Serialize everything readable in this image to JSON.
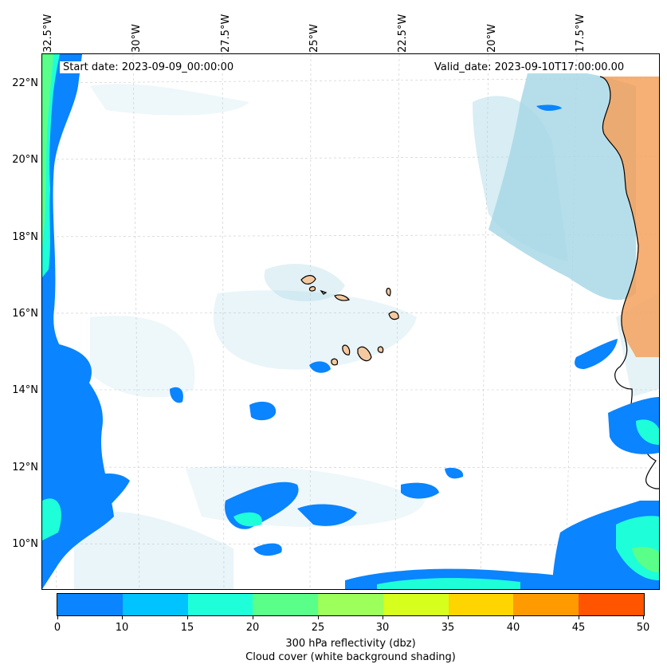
{
  "map": {
    "start_date": "Start date: 2023-09-09_00:00:00",
    "valid_date": "Valid_date: 2023-09-10T17:00:00.00",
    "longitude_labels": [
      "32.5°W",
      "30°W",
      "27.5°W",
      "25°W",
      "22.5°W",
      "20°W",
      "17.5°W"
    ],
    "latitude_labels": [
      "22°N",
      "20°N",
      "18°N",
      "16°N",
      "14°N",
      "12°N",
      "10°N"
    ],
    "colors": {
      "land_africa": "#f4a15d",
      "islands": "#f5c9a0",
      "cloud_shading": "#a8d8e6",
      "coastline": "#000000",
      "gridlines": "#c0c0c0"
    }
  },
  "colorbar": {
    "label_line1": "300 hPa reflectivity (dbz)",
    "label_line2": "Cloud cover (white background shading)",
    "ticks": [
      "0",
      "10",
      "15",
      "20",
      "25",
      "30",
      "35",
      "40",
      "45",
      "50"
    ],
    "colors": [
      "#0a84ff",
      "#00c3ff",
      "#1effd9",
      "#5aff8a",
      "#9cff5a",
      "#d6ff1e",
      "#ffd500",
      "#ff9a00",
      "#ff5400"
    ]
  }
}
